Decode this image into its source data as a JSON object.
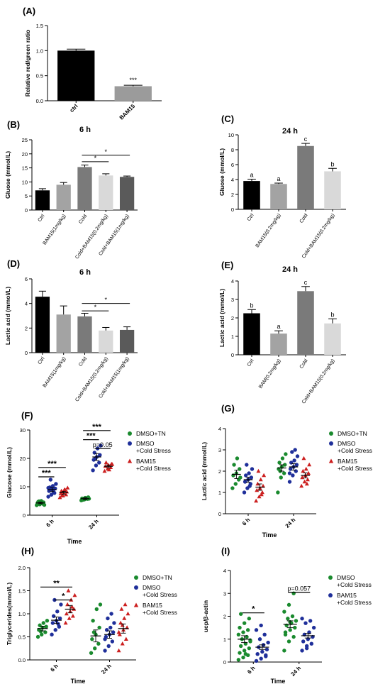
{
  "chart_data": [
    {
      "id": "A",
      "panel_label": "(A)",
      "type": "bar",
      "title": "",
      "ylabel": "Relative red/green ratio",
      "xlabel": "",
      "ylim": [
        0,
        1.5
      ],
      "yticks": [
        0.0,
        0.5,
        1.0,
        1.5
      ],
      "categories": [
        "ctrl",
        "BAM15"
      ],
      "values": [
        1.0,
        0.29
      ],
      "errors": [
        0.03,
        0.02
      ],
      "colors": [
        "#000000",
        "#9b9b9b"
      ],
      "annotations": [
        {
          "text": "***",
          "category": 1
        }
      ]
    },
    {
      "id": "B",
      "panel_label": "(B)",
      "type": "bar",
      "title": "6 h",
      "ylabel": "Gluose (mmol/L)",
      "xlabel": "",
      "ylim": [
        0,
        25
      ],
      "yticks": [
        0,
        5,
        10,
        15,
        20,
        25
      ],
      "categories": [
        "Ctrl",
        "BAM15(1mg/kg)",
        "Cold",
        "Cold+BAM15(0.2mg/kg)",
        "Cold+BAM15(1mg/kg)"
      ],
      "values": [
        7.0,
        9.0,
        15.3,
        12.3,
        11.8
      ],
      "errors": [
        0.6,
        0.8,
        0.7,
        0.6,
        0.3
      ],
      "colors": [
        "#000000",
        "#a3a3a3",
        "#7a7a7a",
        "#d9d9d9",
        "#5a5a5a"
      ],
      "brackets": [
        {
          "from": 2,
          "to": 3,
          "y": 17.2,
          "text": "*"
        },
        {
          "from": 2,
          "to": 4,
          "y": 19.5,
          "text": "*"
        }
      ]
    },
    {
      "id": "C",
      "panel_label": "(C)",
      "type": "bar",
      "title": "24 h",
      "ylabel": "Gluose (mmol/L)",
      "xlabel": "",
      "ylim": [
        0,
        10
      ],
      "yticks": [
        0,
        2,
        4,
        6,
        8,
        10
      ],
      "categories": [
        "Ctrl",
        "BAM15(0.2mg/kg)",
        "Cold",
        "Cold+BAM15(0.2mg/kg)"
      ],
      "values": [
        3.8,
        3.4,
        8.5,
        5.1
      ],
      "errors": [
        0.25,
        0.12,
        0.35,
        0.4
      ],
      "colors": [
        "#000000",
        "#a3a3a3",
        "#7a7a7a",
        "#d9d9d9"
      ],
      "letters": [
        "a",
        "a",
        "c",
        "b"
      ]
    },
    {
      "id": "D",
      "panel_label": "(D)",
      "type": "bar",
      "title": "6 h",
      "ylabel": "Lactic acid (mmol/L)",
      "xlabel": "",
      "ylim": [
        0,
        6
      ],
      "yticks": [
        0,
        2,
        4,
        6
      ],
      "categories": [
        "Ctrl",
        "BAM15(1mg/kg)",
        "Cold",
        "Cold+BAM15(0.2mg/kg)",
        "Cold+BAM15(1mg/kg)"
      ],
      "values": [
        4.55,
        3.1,
        2.95,
        1.8,
        1.85
      ],
      "errors": [
        0.45,
        0.7,
        0.25,
        0.25,
        0.25
      ],
      "colors": [
        "#000000",
        "#a3a3a3",
        "#7a7a7a",
        "#d9d9d9",
        "#5a5a5a"
      ],
      "brackets": [
        {
          "from": 2,
          "to": 3,
          "y": 3.4,
          "text": "*"
        },
        {
          "from": 2,
          "to": 4,
          "y": 4.0,
          "text": "*"
        }
      ]
    },
    {
      "id": "E",
      "panel_label": "(E)",
      "type": "bar",
      "title": "24 h",
      "ylabel": "Lactic acid (mmol/L)",
      "xlabel": "",
      "ylim": [
        0,
        4
      ],
      "yticks": [
        0,
        1,
        2,
        3,
        4
      ],
      "categories": [
        "Ctrl",
        "BAM(0.2mg/kg)",
        "Cold",
        "Cold+BAM15(0.2mg/kg)"
      ],
      "values": [
        2.25,
        1.15,
        3.45,
        1.7
      ],
      "errors": [
        0.2,
        0.15,
        0.25,
        0.25
      ],
      "colors": [
        "#000000",
        "#a3a3a3",
        "#7a7a7a",
        "#d9d9d9"
      ],
      "letters": [
        "b",
        "a",
        "c",
        "b"
      ]
    },
    {
      "id": "F",
      "panel_label": "(F)",
      "type": "scatter",
      "title": "",
      "ylabel": "Glucose (mmol/L)",
      "xlabel": "Time",
      "ylim": [
        0,
        30
      ],
      "yticks": [
        0,
        10,
        20,
        30
      ],
      "categories": [
        "6 h",
        "24 h"
      ],
      "series": [
        {
          "name": "DMSO+TN",
          "color": "#1a8a2e",
          "marker": "circle",
          "mean": [
            4.3,
            5.8
          ],
          "sem": [
            0.3,
            0.3
          ],
          "points": [
            [
              3.5,
              3.8,
              4.0,
              4.2,
              4.4,
              4.5,
              4.7,
              5.0,
              3.6,
              4.9
            ],
            [
              5.2,
              5.5,
              5.7,
              5.9,
              6.1,
              6.3,
              5.4,
              6.0,
              5.8
            ]
          ]
        },
        {
          "name": "DMSO\n+Cold Stress",
          "color": "#1f2f9a",
          "marker": "circle",
          "mean": [
            9.0,
            20.5
          ],
          "sem": [
            0.7,
            1.2
          ],
          "points": [
            [
              6.5,
              7.2,
              7.8,
              8.5,
              9.0,
              9.4,
              9.8,
              10.3,
              11.0,
              12.5,
              8.2,
              9.6
            ],
            [
              15.8,
              17.5,
              18.5,
              19.5,
              20.5,
              21.2,
              22.0,
              23.5,
              24.5,
              20.0
            ]
          ]
        },
        {
          "name": "BAM15\n+Cold Stress",
          "color": "#cc1f1f",
          "marker": "triangle",
          "mean": [
            7.9,
            17.2
          ],
          "sem": [
            0.5,
            0.5
          ],
          "points": [
            [
              6.2,
              6.8,
              7.2,
              7.6,
              7.9,
              8.2,
              8.5,
              9.0,
              9.6,
              7.0,
              8.8
            ],
            [
              15.5,
              16.3,
              16.8,
              17.2,
              17.6,
              18.0,
              18.5,
              16.0,
              17.9
            ]
          ]
        }
      ],
      "brackets": [
        {
          "x1": 0,
          "s1": 0,
          "x2": 0,
          "s2": 1,
          "y": 13.5,
          "text": "***"
        },
        {
          "x1": 0,
          "s1": 0,
          "x2": 0,
          "s2": 2,
          "y": 16.8,
          "text": "***"
        },
        {
          "x1": 1,
          "s1": 1,
          "x2": 1,
          "s2": 2,
          "y": 23.5,
          "text": "p=0.05"
        },
        {
          "x1": 1,
          "s1": 0,
          "x2": 1,
          "s2": 1,
          "y": 26.6,
          "text": "***"
        },
        {
          "x1": 1,
          "s1": 0,
          "x2": 1,
          "s2": 2,
          "y": 29.8,
          "text": "***"
        }
      ]
    },
    {
      "id": "G",
      "panel_label": "(G)",
      "type": "scatter",
      "title": "",
      "ylabel": "Lactic acid (mmol/L)",
      "xlabel": "Time",
      "ylim": [
        0,
        4
      ],
      "yticks": [
        0,
        1,
        2,
        3,
        4
      ],
      "categories": [
        "6 h",
        "24 h"
      ],
      "series": [
        {
          "name": "DMSO+TN",
          "color": "#1a8a2e",
          "marker": "circle",
          "mean": [
            1.85,
            2.15
          ],
          "sem": [
            0.2,
            0.15
          ],
          "points": [
            [
              1.2,
              1.4,
              1.6,
              1.8,
              1.9,
              2.1,
              2.3,
              2.6,
              1.7
            ],
            [
              1.0,
              1.7,
              1.9,
              2.1,
              2.2,
              2.3,
              2.4,
              2.6,
              2.8,
              2.0
            ]
          ]
        },
        {
          "name": "DMSO\n+Cold Stress",
          "color": "#1f2f9a",
          "marker": "circle",
          "mean": [
            1.6,
            2.2
          ],
          "sem": [
            0.12,
            0.15
          ],
          "points": [
            [
              1.0,
              1.2,
              1.4,
              1.5,
              1.6,
              1.7,
              1.8,
              1.9,
              2.1,
              2.3,
              1.3
            ],
            [
              1.5,
              1.8,
              2.0,
              2.1,
              2.2,
              2.3,
              2.4,
              2.5,
              2.7,
              2.9,
              3.0,
              1.9
            ]
          ]
        },
        {
          "name": "BAM15\n+Cold Stress",
          "color": "#cc1f1f",
          "marker": "triangle",
          "mean": [
            1.25,
            1.8
          ],
          "sem": [
            0.15,
            0.12
          ],
          "points": [
            [
              0.6,
              0.8,
              1.0,
              1.1,
              1.2,
              1.3,
              1.4,
              1.6,
              1.8,
              2.0,
              0.9
            ],
            [
              1.3,
              1.5,
              1.6,
              1.7,
              1.8,
              1.9,
              2.0,
              2.1,
              2.3,
              2.6,
              1.4
            ]
          ]
        }
      ],
      "brackets": []
    },
    {
      "id": "H",
      "panel_label": "(H)",
      "type": "scatter",
      "title": "",
      "ylabel": "Triglycerides(mmol/L)",
      "xlabel": "Time",
      "ylim": [
        0,
        2.0
      ],
      "yticks": [
        0.0,
        0.5,
        1.0,
        1.5,
        2.0
      ],
      "categories": [
        "6 h",
        "24 h"
      ],
      "series": [
        {
          "name": "DMSO+TN",
          "color": "#1a8a2e",
          "marker": "circle",
          "mean": [
            0.68,
            0.52
          ],
          "sem": [
            0.05,
            0.13
          ],
          "points": [
            [
              0.5,
              0.55,
              0.6,
              0.65,
              0.7,
              0.72,
              0.75,
              0.8,
              0.85,
              0.62
            ],
            [
              0.15,
              0.25,
              0.35,
              0.45,
              0.55,
              0.7,
              0.85,
              1.1,
              1.2,
              0.6
            ]
          ]
        },
        {
          "name": "DMSO\n+Cold Stress",
          "color": "#1f2f9a",
          "marker": "circle",
          "mean": [
            0.86,
            0.55
          ],
          "sem": [
            0.07,
            0.08
          ],
          "points": [
            [
              0.55,
              0.65,
              0.72,
              0.8,
              0.85,
              0.9,
              0.95,
              1.05,
              1.2,
              1.3,
              0.78
            ],
            [
              0.2,
              0.3,
              0.4,
              0.5,
              0.55,
              0.6,
              0.65,
              0.7,
              0.8,
              0.9,
              1.0,
              0.45
            ]
          ]
        },
        {
          "name": "BAM15\n+Cold Stress",
          "color": "#cc1f1f",
          "marker": "triangle",
          "mean": [
            1.1,
            0.68
          ],
          "sem": [
            0.08,
            0.1
          ],
          "points": [
            [
              0.8,
              0.9,
              0.95,
              1.0,
              1.05,
              1.1,
              1.2,
              1.3,
              1.4,
              1.5,
              1.15
            ],
            [
              0.2,
              0.35,
              0.45,
              0.55,
              0.65,
              0.7,
              0.8,
              0.9,
              1.0,
              1.1,
              1.2,
              0.6,
              0.75
            ]
          ]
        }
      ],
      "brackets": [
        {
          "x1": 0,
          "s1": 1,
          "x2": 0,
          "s2": 2,
          "y": 1.3,
          "text": "*"
        },
        {
          "x1": 0,
          "s1": 0,
          "x2": 0,
          "s2": 2,
          "y": 1.58,
          "text": "**"
        }
      ]
    },
    {
      "id": "I",
      "panel_label": "(I)",
      "type": "scatter",
      "title": "",
      "ylabel": "ucp/β-actin",
      "xlabel": "Time",
      "ylim": [
        0,
        4
      ],
      "yticks": [
        0,
        1,
        2,
        3,
        4
      ],
      "categories": [
        "6 h",
        "24 h"
      ],
      "series": [
        {
          "name": "DMSO\n+Cold Stress",
          "color": "#1a8a2e",
          "marker": "circle",
          "mean": [
            1.0,
            1.65
          ],
          "sem": [
            0.15,
            0.15
          ],
          "points": [
            [
              0.1,
              0.2,
              0.3,
              0.4,
              0.5,
              0.6,
              0.7,
              0.8,
              0.9,
              1.0,
              1.1,
              1.2,
              1.3,
              1.4,
              1.5,
              1.7,
              1.9,
              2.1,
              0.35,
              0.95
            ],
            [
              0.5,
              0.9,
              1.1,
              1.3,
              1.4,
              1.5,
              1.6,
              1.7,
              1.8,
              1.9,
              2.0,
              2.2,
              2.5,
              3.0,
              1.2,
              1.75
            ]
          ]
        },
        {
          "name": "BAM15\n+Cold Stress",
          "color": "#1f2f9a",
          "marker": "circle",
          "mean": [
            0.65,
            1.15
          ],
          "sem": [
            0.1,
            0.1
          ],
          "points": [
            [
              0.05,
              0.15,
              0.25,
              0.35,
              0.45,
              0.55,
              0.65,
              0.75,
              0.85,
              1.0,
              1.2,
              1.4,
              1.6,
              0.3
            ],
            [
              0.5,
              0.7,
              0.8,
              0.9,
              1.0,
              1.1,
              1.2,
              1.3,
              1.5,
              1.7,
              1.8,
              1.9,
              0.6
            ]
          ]
        }
      ],
      "brackets": [
        {
          "x1": 0,
          "s1": 0,
          "x2": 0,
          "s2": 1,
          "y": 2.15,
          "text": "*"
        },
        {
          "x1": 1,
          "s1": 0,
          "x2": 1,
          "s2": 1,
          "y": 3.05,
          "text": "p=0.057"
        }
      ]
    }
  ]
}
